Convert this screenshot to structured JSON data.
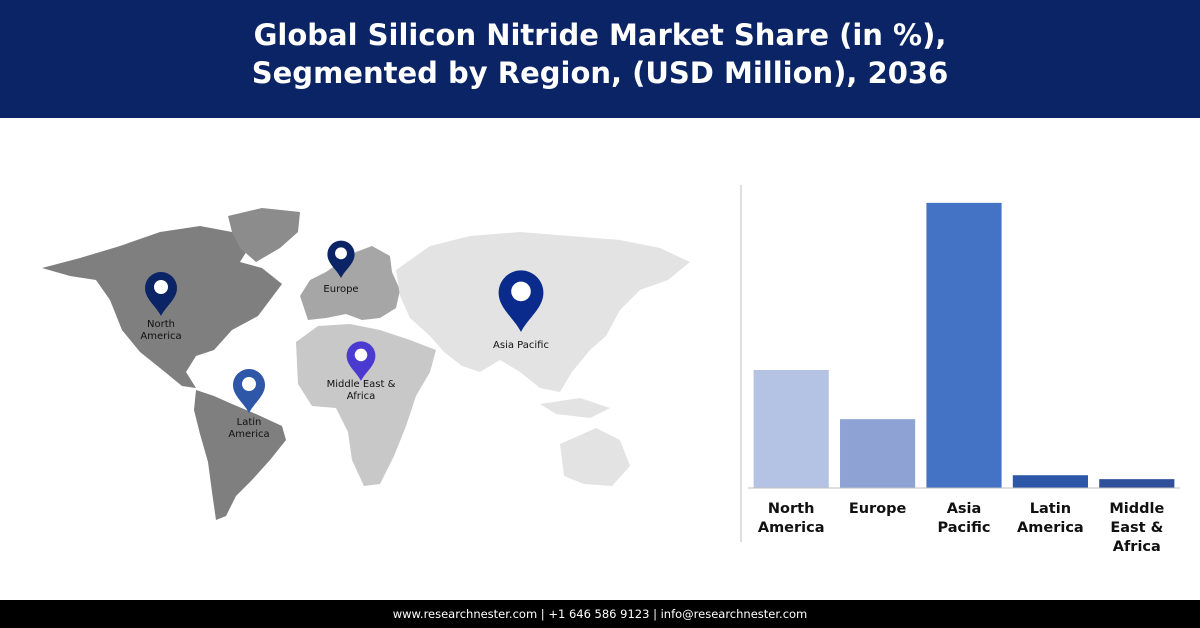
{
  "chart_data": {
    "type": "bar",
    "title": [
      "Global Silicon Nitride Market Share (in %),",
      "Segmented by Region, (USD Million), 2036"
    ],
    "categories": [
      "North America",
      "Europe",
      "Asia Pacific",
      "Latin America",
      "Middle East & Africa"
    ],
    "values": [
      24,
      14,
      58,
      2.6,
      1.8
    ],
    "colors": [
      "#b4c3e3",
      "#8ea3d4",
      "#4472c4",
      "#2e57a8",
      "#2f4f9a"
    ],
    "ylim": [
      0,
      60
    ],
    "grid": false
  },
  "map_labels": [
    {
      "lines": [
        "North",
        "America"
      ],
      "color": "#0b2466"
    },
    {
      "lines": [
        "Europe"
      ],
      "color": "#0b2466"
    },
    {
      "lines": [
        "Asia Pacific"
      ],
      "color": "#0a2a8c"
    },
    {
      "lines": [
        "Middle East &",
        "Africa"
      ],
      "color": "#4a3ad0"
    },
    {
      "lines": [
        "Latin",
        "America"
      ],
      "color": "#2e57a8"
    }
  ],
  "footer": "www.researchnester.com  | +1 646 586 9123 | info@researchnester.com"
}
